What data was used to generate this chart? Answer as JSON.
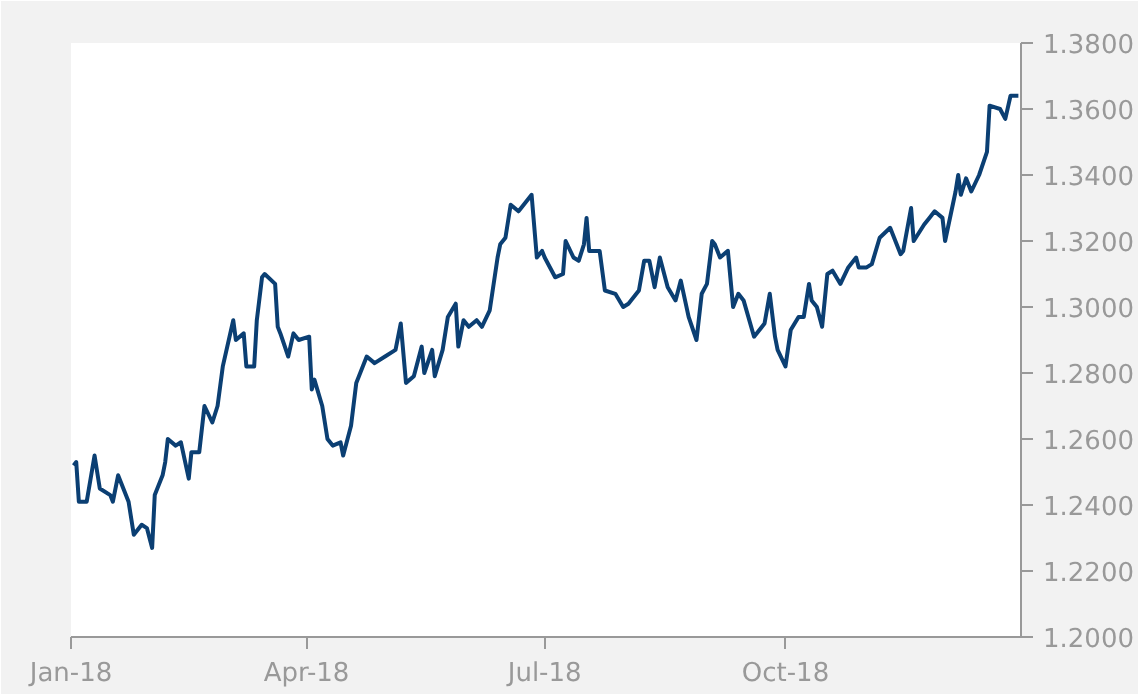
{
  "chart_data": {
    "type": "line",
    "x": [
      "2018-01-02",
      "2018-01-03",
      "2018-01-04",
      "2018-01-07",
      "2018-01-10",
      "2018-01-12",
      "2018-01-16",
      "2018-01-17",
      "2018-01-19",
      "2018-01-23",
      "2018-01-24",
      "2018-01-25",
      "2018-01-28",
      "2018-01-30",
      "2018-02-01",
      "2018-02-02",
      "2018-02-05",
      "2018-02-06",
      "2018-02-07",
      "2018-02-10",
      "2018-02-12",
      "2018-02-15",
      "2018-02-16",
      "2018-02-19",
      "2018-02-21",
      "2018-02-24",
      "2018-02-26",
      "2018-02-28",
      "2018-03-04",
      "2018-03-05",
      "2018-03-08",
      "2018-03-09",
      "2018-03-12",
      "2018-03-13",
      "2018-03-15",
      "2018-03-16",
      "2018-03-20",
      "2018-03-21",
      "2018-03-22",
      "2018-03-25",
      "2018-03-27",
      "2018-03-29",
      "2018-04-02",
      "2018-04-03",
      "2018-04-04",
      "2018-04-07",
      "2018-04-09",
      "2018-04-11",
      "2018-04-14",
      "2018-04-15",
      "2018-04-18",
      "2018-04-20",
      "2018-04-24",
      "2018-04-27",
      "2018-05-01",
      "2018-05-05",
      "2018-05-07",
      "2018-05-09",
      "2018-05-12",
      "2018-05-15",
      "2018-05-16",
      "2018-05-19",
      "2018-05-20",
      "2018-05-23",
      "2018-05-25",
      "2018-05-28",
      "2018-05-29",
      "2018-05-31",
      "2018-06-02",
      "2018-06-05",
      "2018-06-07",
      "2018-06-10",
      "2018-06-13",
      "2018-06-14",
      "2018-06-16",
      "2018-06-18",
      "2018-06-21",
      "2018-06-22",
      "2018-06-26",
      "2018-06-28",
      "2018-06-30",
      "2018-07-01",
      "2018-07-05",
      "2018-07-08",
      "2018-07-09",
      "2018-07-12",
      "2018-07-14",
      "2018-07-16",
      "2018-07-17",
      "2018-07-18",
      "2018-07-22",
      "2018-07-24",
      "2018-07-28",
      "2018-07-31",
      "2018-08-02",
      "2018-08-06",
      "2018-08-08",
      "2018-08-10",
      "2018-08-12",
      "2018-08-14",
      "2018-08-17",
      "2018-08-20",
      "2018-08-22",
      "2018-08-25",
      "2018-08-28",
      "2018-08-30",
      "2018-09-01",
      "2018-09-03",
      "2018-09-04",
      "2018-09-06",
      "2018-09-09",
      "2018-09-11",
      "2018-09-13",
      "2018-09-15",
      "2018-09-19",
      "2018-09-23",
      "2018-09-25",
      "2018-09-27",
      "2018-09-28",
      "2018-10-01",
      "2018-10-03",
      "2018-10-06",
      "2018-10-08",
      "2018-10-10",
      "2018-10-11",
      "2018-10-13",
      "2018-10-15",
      "2018-10-17",
      "2018-10-19",
      "2018-10-22",
      "2018-10-25",
      "2018-10-28",
      "2018-10-29",
      "2018-11-01",
      "2018-11-03",
      "2018-11-06",
      "2018-11-10",
      "2018-11-14",
      "2018-11-15",
      "2018-11-18",
      "2018-11-19",
      "2018-11-23",
      "2018-11-25",
      "2018-11-27",
      "2018-11-30",
      "2018-12-01",
      "2018-12-05",
      "2018-12-06",
      "2018-12-07",
      "2018-12-09",
      "2018-12-11",
      "2018-12-14",
      "2018-12-17",
      "2018-12-18",
      "2018-12-22",
      "2018-12-24",
      "2018-12-26",
      "2018-12-29"
    ],
    "series": [
      {
        "color": "#0b3f73",
        "values": [
          1.252,
          1.253,
          1.241,
          1.241,
          1.255,
          1.245,
          1.243,
          1.241,
          1.249,
          1.241,
          1.236,
          1.231,
          1.234,
          1.233,
          1.227,
          1.243,
          1.249,
          1.253,
          1.26,
          1.258,
          1.259,
          1.248,
          1.256,
          1.256,
          1.27,
          1.265,
          1.27,
          1.282,
          1.296,
          1.29,
          1.292,
          1.282,
          1.282,
          1.296,
          1.309,
          1.31,
          1.307,
          1.294,
          1.292,
          1.285,
          1.292,
          1.29,
          1.291,
          1.275,
          1.278,
          1.27,
          1.26,
          1.258,
          1.259,
          1.255,
          1.264,
          1.277,
          1.285,
          1.283,
          1.285,
          1.287,
          1.295,
          1.277,
          1.279,
          1.288,
          1.28,
          1.287,
          1.279,
          1.287,
          1.297,
          1.301,
          1.288,
          1.296,
          1.294,
          1.296,
          1.294,
          1.299,
          1.315,
          1.319,
          1.321,
          1.331,
          1.329,
          1.33,
          1.334,
          1.315,
          1.317,
          1.315,
          1.309,
          1.31,
          1.32,
          1.315,
          1.314,
          1.319,
          1.327,
          1.317,
          1.317,
          1.305,
          1.304,
          1.3,
          1.301,
          1.305,
          1.314,
          1.314,
          1.306,
          1.315,
          1.306,
          1.302,
          1.308,
          1.297,
          1.29,
          1.304,
          1.307,
          1.32,
          1.319,
          1.315,
          1.317,
          1.3,
          1.304,
          1.302,
          1.291,
          1.295,
          1.304,
          1.291,
          1.287,
          1.282,
          1.293,
          1.297,
          1.297,
          1.307,
          1.302,
          1.3,
          1.294,
          1.31,
          1.311,
          1.307,
          1.312,
          1.315,
          1.312,
          1.312,
          1.313,
          1.321,
          1.324,
          1.316,
          1.317,
          1.33,
          1.32,
          1.325,
          1.327,
          1.329,
          1.327,
          1.32,
          1.335,
          1.34,
          1.334,
          1.339,
          1.335,
          1.34,
          1.347,
          1.361,
          1.36,
          1.357,
          1.364,
          1.364
        ]
      }
    ],
    "xlim": [
      "2018-01-01",
      "2018-12-30"
    ],
    "xticks": [
      {
        "value": "2018-01-01",
        "label": "Jan-18"
      },
      {
        "value": "2018-04-01",
        "label": "Apr-18"
      },
      {
        "value": "2018-07-01",
        "label": "Jul-18"
      },
      {
        "value": "2018-10-01",
        "label": "Oct-18"
      }
    ],
    "ylim": [
      1.2,
      1.38
    ],
    "yticks": [
      {
        "value": 1.2,
        "label": "1.2000"
      },
      {
        "value": 1.22,
        "label": "1.2200"
      },
      {
        "value": 1.24,
        "label": "1.2400"
      },
      {
        "value": 1.26,
        "label": "1.2600"
      },
      {
        "value": 1.28,
        "label": "1.2800"
      },
      {
        "value": 1.3,
        "label": "1.3000"
      },
      {
        "value": 1.32,
        "label": "1.3200"
      },
      {
        "value": 1.34,
        "label": "1.3400"
      },
      {
        "value": 1.36,
        "label": "1.3600"
      },
      {
        "value": 1.38,
        "label": "1.3800"
      }
    ],
    "grid": false,
    "marker": "none",
    "line_style": "solid"
  }
}
